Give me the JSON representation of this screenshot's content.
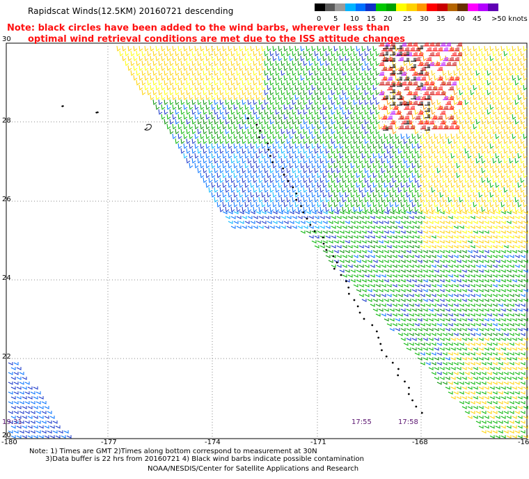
{
  "title": "Rapidscat Winds(12.5KM) 20160721 descending",
  "note_line1": "Note: black circles have been added to the wind barbs, wherever less than",
  "note_line2": "optimal wind retrieval conditions are met due to the ISS attitude changes",
  "legend": {
    "colors": [
      "#000000",
      "#5a5a5a",
      "#9a9a9a",
      "#00b4ff",
      "#0070ff",
      "#1030c8",
      "#00c800",
      "#00a000",
      "#ffff00",
      "#ffd200",
      "#ff9600",
      "#ff0000",
      "#c80000",
      "#b46400",
      "#6a3000",
      "#ff00ff",
      "#b400ff",
      "#6000b4"
    ],
    "labels": [
      "0",
      "5",
      "10",
      "15",
      "20",
      "25",
      "30",
      "35",
      "40",
      "45",
      ">50 knots"
    ]
  },
  "axes": {
    "lon_labels": [
      "-180",
      "-177",
      "-174",
      "-171",
      "-168",
      "-16"
    ],
    "lat_labels": [
      "30",
      "28",
      "26",
      "24",
      "22",
      "20"
    ]
  },
  "times": [
    "19:31",
    "17:55",
    "17:58"
  ],
  "footer": {
    "line1": "Note: 1) Times are GMT 2)Times along bottom correspond to measurement at 30N",
    "line2": "3)Data buffer is 22 hrs from 20160721 4) Black wind barbs indicate possible contamination",
    "line3": "NOAA/NESDIS/Center for Satellite Applications and Research"
  }
}
